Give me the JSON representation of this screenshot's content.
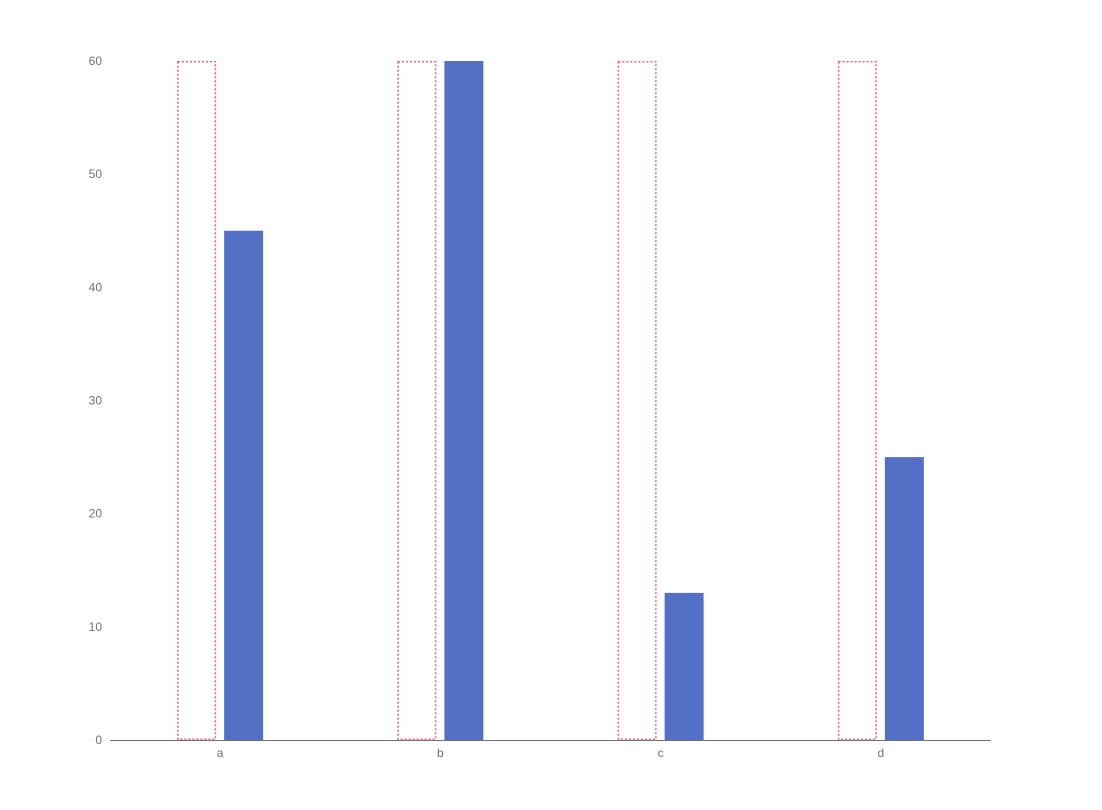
{
  "chart_data": {
    "type": "bar",
    "categories": [
      "a",
      "b",
      "c",
      "d"
    ],
    "series": [
      {
        "style": "dotted-outline",
        "color": "#ee6666",
        "values": [
          60,
          60,
          60,
          60
        ]
      },
      {
        "style": "solid",
        "color": "#5470c6",
        "values": [
          45,
          60,
          13,
          25
        ]
      }
    ],
    "yticks": [
      0,
      10,
      20,
      30,
      40,
      50,
      60
    ],
    "ylim": [
      0,
      60
    ],
    "grid": false,
    "colors": {
      "axis_line": "#6e7079",
      "tick_text": "#6e7079"
    }
  }
}
